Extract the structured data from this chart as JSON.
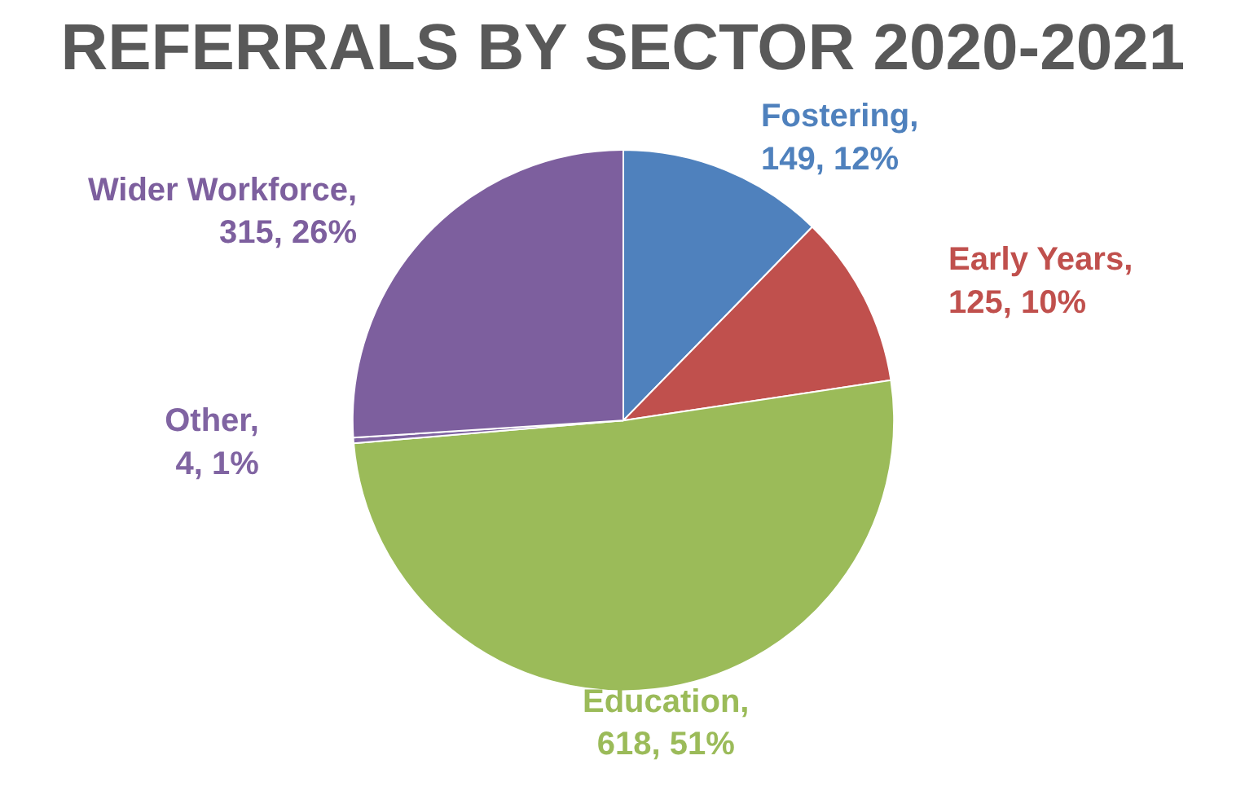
{
  "chart_data": {
    "type": "pie",
    "title": "REFERRALS BY SECTOR 2020-2021",
    "categories": [
      "Fostering",
      "Early Years",
      "Education",
      "Other",
      "Wider Workforce"
    ],
    "values": [
      149,
      125,
      618,
      4,
      315
    ],
    "value_labels": [
      ", 149, 12%",
      ", 125, 10%",
      ", 618, 51%",
      ", 4, 1%",
      ", 315, 26%"
    ],
    "colors": [
      "#4f81bd",
      "#c0504d",
      "#9bbb59",
      "#8064a2",
      "#7d5f9e"
    ]
  }
}
